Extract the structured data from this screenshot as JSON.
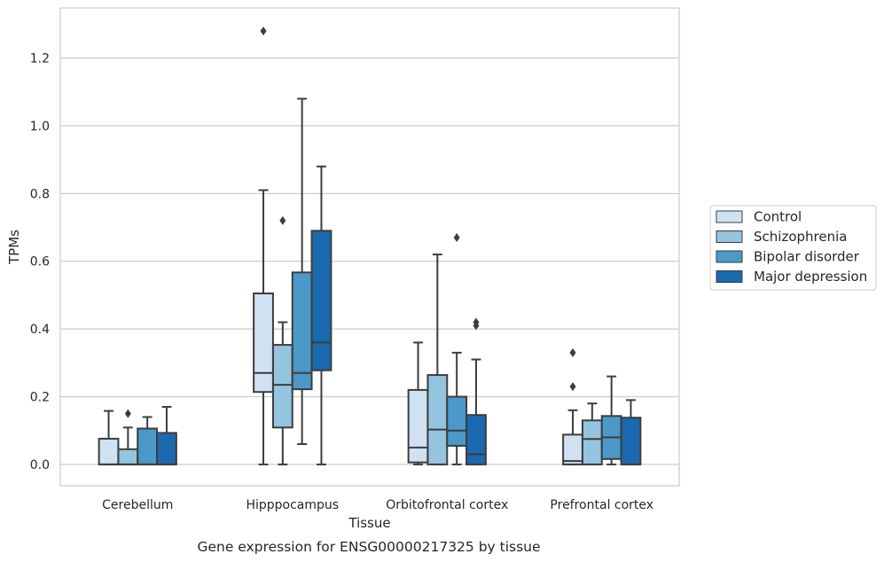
{
  "chart_data": {
    "type": "box",
    "title": "",
    "caption": "Gene expression for ENSG00000217325 by tissue",
    "xlabel": "Tissue",
    "ylabel": "TPMs",
    "ylim": [
      -0.063,
      1.348
    ],
    "yticks": [
      0.0,
      0.2,
      0.4,
      0.6,
      0.8,
      1.0,
      1.2
    ],
    "ytick_labels": [
      "0.0",
      "0.2",
      "0.4",
      "0.6",
      "0.8",
      "1.0",
      "1.2"
    ],
    "grid": "horizontal",
    "legend_position": "right",
    "categories": [
      "Cerebellum",
      "Hipppocampus",
      "Orbitofrontal cortex",
      "Prefrontal cortex"
    ],
    "series": [
      {
        "name": "Control",
        "color": "#d0e1f2",
        "boxes": [
          {
            "whislo": 0.0,
            "q1": 0.0,
            "med": 0.0,
            "q3": 0.076,
            "whishi": 0.158,
            "fliers": []
          },
          {
            "whislo": 0.0,
            "q1": 0.214,
            "med": 0.27,
            "q3": 0.505,
            "whishi": 0.81,
            "fliers": [
              1.28
            ]
          },
          {
            "whislo": 0.0,
            "q1": 0.006,
            "med": 0.05,
            "q3": 0.22,
            "whishi": 0.36,
            "fliers": []
          },
          {
            "whislo": 0.0,
            "q1": 0.0,
            "med": 0.01,
            "q3": 0.088,
            "whishi": 0.16,
            "fliers": [
              0.23,
              0.33
            ]
          }
        ]
      },
      {
        "name": "Schizophrenia",
        "color": "#94c4df",
        "boxes": [
          {
            "whislo": 0.0,
            "q1": 0.0,
            "med": 0.0,
            "q3": 0.045,
            "whishi": 0.109,
            "fliers": [
              0.15
            ]
          },
          {
            "whislo": 0.0,
            "q1": 0.109,
            "med": 0.235,
            "q3": 0.353,
            "whishi": 0.42,
            "fliers": [
              0.72
            ]
          },
          {
            "whislo": 0.0,
            "q1": 0.0,
            "med": 0.103,
            "q3": 0.264,
            "whishi": 0.62,
            "fliers": []
          },
          {
            "whislo": 0.0,
            "q1": 0.0,
            "med": 0.075,
            "q3": 0.13,
            "whishi": 0.18,
            "fliers": []
          }
        ]
      },
      {
        "name": "Bipolar disorder",
        "color": "#4b98c9",
        "boxes": [
          {
            "whislo": 0.0,
            "q1": 0.0,
            "med": 0.0,
            "q3": 0.106,
            "whishi": 0.14,
            "fliers": []
          },
          {
            "whislo": 0.06,
            "q1": 0.222,
            "med": 0.27,
            "q3": 0.567,
            "whishi": 1.08,
            "fliers": []
          },
          {
            "whislo": 0.0,
            "q1": 0.055,
            "med": 0.1,
            "q3": 0.2,
            "whishi": 0.33,
            "fliers": [
              0.67
            ]
          },
          {
            "whislo": 0.0,
            "q1": 0.016,
            "med": 0.08,
            "q3": 0.143,
            "whishi": 0.26,
            "fliers": []
          }
        ]
      },
      {
        "name": "Major depression",
        "color": "#1b69af",
        "boxes": [
          {
            "whislo": 0.0,
            "q1": 0.0,
            "med": 0.0,
            "q3": 0.093,
            "whishi": 0.17,
            "fliers": []
          },
          {
            "whislo": 0.0,
            "q1": 0.278,
            "med": 0.36,
            "q3": 0.69,
            "whishi": 0.88,
            "fliers": []
          },
          {
            "whislo": 0.0,
            "q1": 0.0,
            "med": 0.03,
            "q3": 0.146,
            "whishi": 0.31,
            "fliers": [
              0.41,
              0.42
            ]
          },
          {
            "whislo": 0.0,
            "q1": 0.0,
            "med": 0.0,
            "q3": 0.138,
            "whishi": 0.19,
            "fliers": []
          }
        ]
      }
    ]
  }
}
